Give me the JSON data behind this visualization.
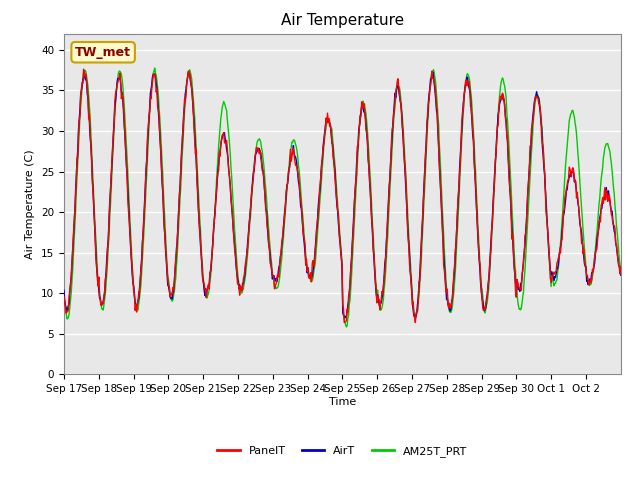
{
  "title": "Air Temperature",
  "ylabel": "Air Temperature (C)",
  "xlabel": "Time",
  "ylim": [
    0,
    42
  ],
  "yticks": [
    0,
    5,
    10,
    15,
    20,
    25,
    30,
    35,
    40
  ],
  "annotation_text": "TW_met",
  "annotation_color": "#8B0000",
  "annotation_bg": "#FFFACD",
  "annotation_border": "#C8A000",
  "line_colors": {
    "PanelT": "#FF0000",
    "AirT": "#0000CC",
    "AM25T_PRT": "#00CC00"
  },
  "xtick_labels": [
    "Sep 17",
    "Sep 18",
    "Sep 19",
    "Sep 20",
    "Sep 21",
    "Sep 22",
    "Sep 23",
    "Sep 24",
    "Sep 25",
    "Sep 26",
    "Sep 27",
    "Sep 28",
    "Sep 29",
    "Sep 30",
    "Oct 1",
    "Oct 2"
  ],
  "plot_bg": "#E8E8E8",
  "fig_bg": "#FFFFFF",
  "grid_color": "#FFFFFF",
  "title_fontsize": 11,
  "axis_label_fontsize": 8,
  "tick_fontsize": 7.5,
  "legend_fontsize": 8,
  "daily_peaks_air": [
    37.0,
    36.5,
    37.0,
    37.0,
    29.5,
    27.8,
    27.5,
    31.5,
    33.0,
    35.5,
    37.0,
    36.5,
    34.5,
    34.5,
    25.0,
    22.5
  ],
  "daily_mins_air": [
    8.0,
    8.5,
    8.5,
    9.5,
    10.0,
    10.5,
    11.5,
    12.0,
    7.0,
    8.5,
    7.0,
    8.0,
    8.0,
    10.5,
    12.0,
    11.5
  ],
  "daily_peaks_green": [
    37.5,
    37.5,
    37.5,
    37.5,
    33.5,
    29.0,
    29.0,
    31.5,
    33.5,
    35.5,
    37.5,
    37.0,
    36.5,
    34.5,
    32.5,
    28.5
  ],
  "daily_mins_green": [
    7.0,
    8.0,
    8.0,
    9.0,
    9.5,
    10.0,
    10.5,
    11.5,
    6.0,
    8.0,
    7.0,
    7.5,
    8.0,
    8.0,
    11.0,
    11.0
  ]
}
